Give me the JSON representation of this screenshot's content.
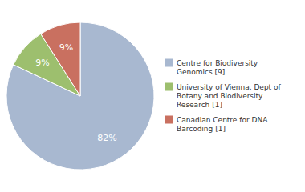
{
  "chart_data": {
    "type": "pie",
    "categories": [
      "Centre for Biodiversity\nGenomics [9]",
      "University of Vienna. Dept of\nBotany and Biodiversity\nResearch [1]",
      "Canadian Centre for DNA\nBarcoding [1]"
    ],
    "values": [
      82,
      9,
      9
    ],
    "value_labels": [
      "82%",
      "9%",
      "9%"
    ],
    "colors": [
      "#a8b8d0",
      "#9dbf6e",
      "#c97060"
    ],
    "data_labels": true,
    "legend": "right"
  }
}
